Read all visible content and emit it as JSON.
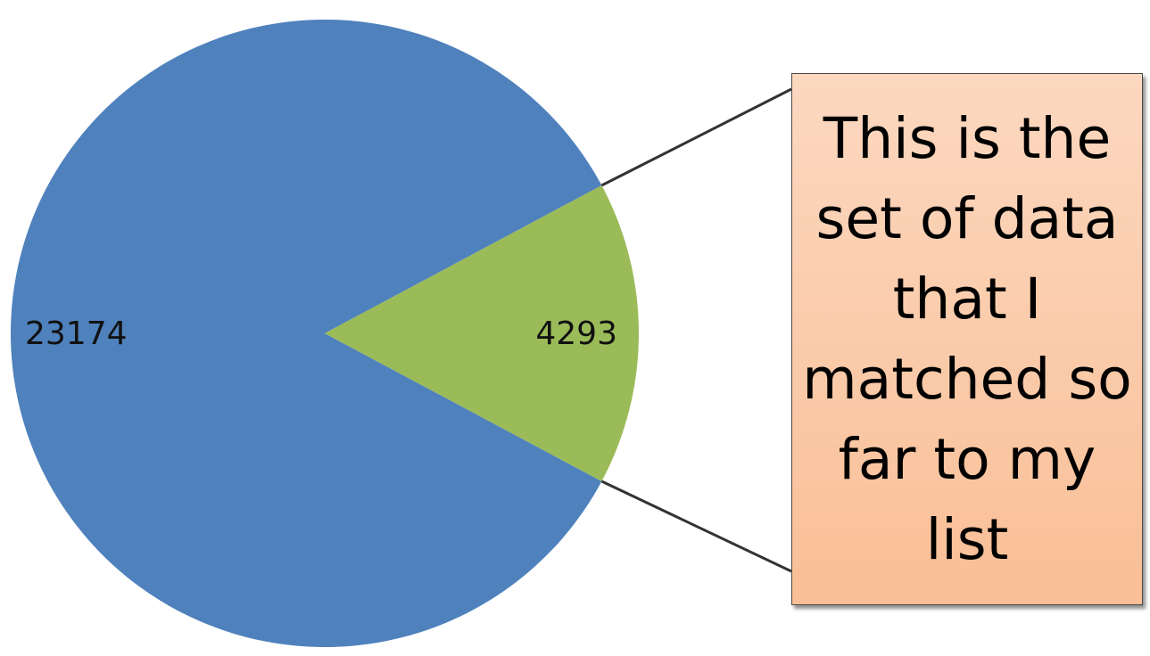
{
  "chart_data": {
    "type": "pie",
    "title": "",
    "slices": [
      {
        "value": 23174,
        "label": "23174",
        "color": "#4f81bd"
      },
      {
        "value": 4293,
        "label": "4293",
        "color": "#9bbb59"
      }
    ],
    "legend": "none",
    "annotation": "This is the set of data that I matched so far to my list"
  }
}
